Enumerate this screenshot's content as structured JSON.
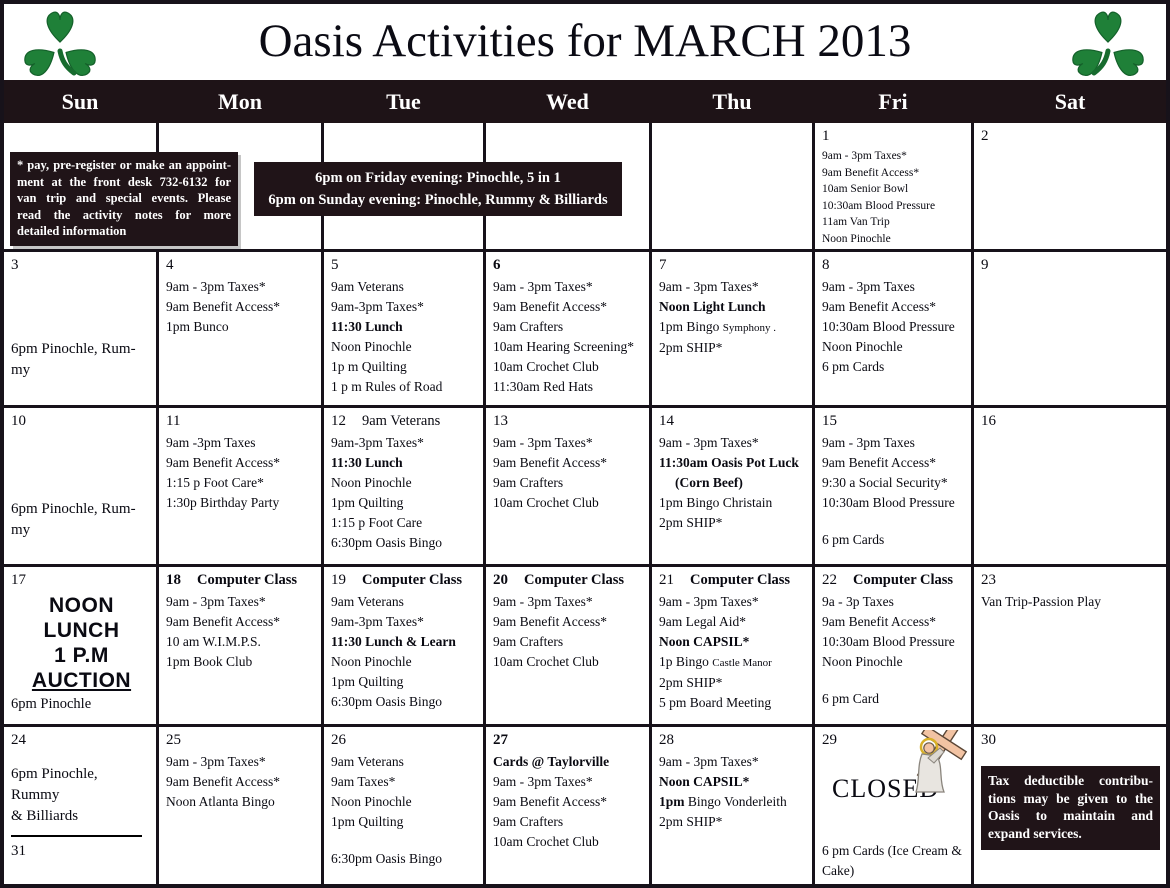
{
  "title": "Oasis Activities for MARCH 2013",
  "weekdays": [
    "Sun",
    "Mon",
    "Tue",
    "Wed",
    "Thu",
    "Fri",
    "Sat"
  ],
  "colors": {
    "band_bg": "#1e1317",
    "note_bg": "#201418",
    "shamrock_green": "#1f8038",
    "cross_tan": "#f2c3a3"
  },
  "icons": {
    "left": "shamrock-icon",
    "right": "shamrock-icon",
    "closed_cell": "jesus-carrying-cross-icon"
  },
  "notes": {
    "register_lines": [
      "* pay, pre-register or make an appoint-",
      "ment at the front desk 732-6132 for",
      "van trip and special events.  Please",
      "read the activity notes for more",
      "detailed information"
    ],
    "evening_lines": [
      "6pm on Friday evening: Pinochle, 5 in 1",
      "6pm on Sunday evening: Pinochle, Rummy & Billiards"
    ],
    "tax_lines": [
      "Tax deductible contribu-",
      "tions may be given to the",
      "Oasis to maintain and",
      "expand services."
    ]
  },
  "calendar": {
    "weeks": [
      [
        null,
        null,
        null,
        null,
        null,
        {
          "day": "1",
          "small": true,
          "lines": [
            {
              "t": "9am - 3pm Taxes*"
            },
            {
              "t": "9am Benefit Access*"
            },
            {
              "t": "10am Senior Bowl"
            },
            {
              "t": "10:30am Blood Pressure"
            },
            {
              "t": "11am Van Trip"
            },
            {
              "t": "Noon Pinochle"
            }
          ]
        },
        {
          "day": "2"
        }
      ],
      [
        {
          "day": "3",
          "large": true,
          "lines": [
            {
              "sp": 62
            },
            {
              "t": "6pm Pinochle, Rum-"
            },
            {
              "t": "my"
            }
          ]
        },
        {
          "day": "4",
          "lines": [
            {
              "t": "9am - 3pm Taxes*"
            },
            {
              "t": "9am Benefit Access*"
            },
            {
              "t": "1pm Bunco"
            }
          ]
        },
        {
          "day": "5",
          "lines": [
            {
              "t": "9am Veterans"
            },
            {
              "t": "9am-3pm Taxes*"
            },
            {
              "t": "11:30 Lunch",
              "b": true
            },
            {
              "t": "Noon Pinochle"
            },
            {
              "t": "1p m Quilting"
            },
            {
              "t": "1 p m Rules of Road"
            }
          ]
        },
        {
          "day": "6",
          "day_bold": true,
          "lines": [
            {
              "t": "9am - 3pm Taxes*"
            },
            {
              "t": "9am Benefit Access*"
            },
            {
              "t": "9am Crafters"
            },
            {
              "t": "10am Hearing Screening*"
            },
            {
              "t": "10am Crochet Club"
            },
            {
              "t": "11:30am Red Hats"
            }
          ]
        },
        {
          "day": "7",
          "lines": [
            {
              "t": "9am - 3pm Taxes*"
            },
            {
              "t": "Noon Light Lunch",
              "b": true
            },
            {
              "parts": [
                {
                  "t": "1pm Bingo "
                },
                {
                  "t": "Symphony .",
                  "small": true
                }
              ]
            },
            {
              "t": "2pm SHIP*"
            }
          ]
        },
        {
          "day": "8",
          "lines": [
            {
              "t": "9am - 3pm Taxes"
            },
            {
              "t": "9am Benefit Access*"
            },
            {
              "t": "10:30am Blood Pressure"
            },
            {
              "t": "Noon Pinochle"
            },
            {
              "t": "6 pm  Cards"
            }
          ]
        },
        {
          "day": "9"
        }
      ],
      [
        {
          "day": "10",
          "large": true,
          "lines": [
            {
              "sp": 66
            },
            {
              "t": "6pm Pinochle, Rum-"
            },
            {
              "t": "my"
            }
          ]
        },
        {
          "day": "11",
          "lines": [
            {
              "t": "9am -3pm Taxes"
            },
            {
              "t": "9am Benefit Access*"
            },
            {
              "t": "1:15 p Foot Care*"
            },
            {
              "t": "1:30p Birthday Party"
            }
          ]
        },
        {
          "day": "12",
          "header": "9am Veterans",
          "header_bold": false,
          "lines": [
            {
              "t": "9am-3pm Taxes*"
            },
            {
              "t": "11:30 Lunch",
              "b": true
            },
            {
              "t": "Noon Pinochle"
            },
            {
              "t": "1pm Quilting"
            },
            {
              "t": "1:15 p Foot Care"
            },
            {
              "t": "6:30pm Oasis Bingo"
            }
          ]
        },
        {
          "day": "13",
          "lines": [
            {
              "t": "9am - 3pm Taxes*"
            },
            {
              "t": "9am Benefit Access*"
            },
            {
              "t": "9am Crafters"
            },
            {
              "t": "10am Crochet Club"
            }
          ]
        },
        {
          "day": "14",
          "lines": [
            {
              "t": "9am - 3pm Taxes*"
            },
            {
              "t": "11:30am Oasis Pot Luck",
              "b": true
            },
            {
              "t": "(Corn Beef)",
              "b": true,
              "ind": true
            },
            {
              "t": "1pm Bingo Christain"
            },
            {
              "t": "2pm SHIP*"
            }
          ]
        },
        {
          "day": "15",
          "lines": [
            {
              "t": "9am - 3pm Taxes"
            },
            {
              "t": "9am Benefit Access*"
            },
            {
              "t": "9:30 a Social Security*"
            },
            {
              "t": "10:30am Blood Pressure"
            },
            {
              "sp": 17
            },
            {
              "t": "6 pm Cards"
            }
          ]
        },
        {
          "day": "16"
        }
      ],
      [
        {
          "day": "17",
          "type": "noon-auction",
          "big": [
            "NOON",
            "LUNCH",
            "1 P.M",
            "AUCTION"
          ],
          "bottom": "6pm Pinochle"
        },
        {
          "day": "18",
          "day_bold": true,
          "header": "Computer Class",
          "lines": [
            {
              "t": "9am - 3pm Taxes*"
            },
            {
              "t": "9am Benefit Access*"
            },
            {
              "t": "10 am W.I.M.P.S."
            },
            {
              "t": "1pm Book Club"
            }
          ]
        },
        {
          "day": "19",
          "header": "Computer Class",
          "lines": [
            {
              "t": "9am Veterans"
            },
            {
              "t": "9am-3pm Taxes*"
            },
            {
              "t": "11:30 Lunch & Learn",
              "b": true
            },
            {
              "t": "Noon Pinochle"
            },
            {
              "t": "1pm Quilting"
            },
            {
              "t": "6:30pm Oasis Bingo"
            }
          ]
        },
        {
          "day": "20",
          "day_bold": true,
          "header": "Computer Class",
          "lines": [
            {
              "t": "9am - 3pm Taxes*"
            },
            {
              "t": "9am Benefit Access*"
            },
            {
              "t": "9am Crafters"
            },
            {
              "t": "10am Crochet Club"
            }
          ]
        },
        {
          "day": "21",
          "header": "Computer Class",
          "lines": [
            {
              "t": "9am - 3pm Taxes*"
            },
            {
              "t": "9am Legal Aid*"
            },
            {
              "t": "Noon CAPSIL*",
              "b": true
            },
            {
              "parts": [
                {
                  "t": "1p Bingo "
                },
                {
                  "t": " Castle Manor",
                  "small": true
                }
              ]
            },
            {
              "t": "2pm SHIP*"
            },
            {
              "t": "5 pm Board Meeting"
            }
          ]
        },
        {
          "day": "22",
          "header": "Computer Class",
          "lines": [
            {
              "t": "9a - 3p Taxes"
            },
            {
              "t": "9am Benefit Access*"
            },
            {
              "t": "10:30am Blood Pressure"
            },
            {
              "t": "Noon Pinochle"
            },
            {
              "sp": 17
            },
            {
              "t": "6 pm Card"
            }
          ]
        },
        {
          "day": "23",
          "lines": [
            {
              "t": "Van Trip-Passion Play"
            }
          ]
        }
      ],
      [
        {
          "day": "24",
          "type": "sun-divider",
          "large": true,
          "day2": "31",
          "lines": [
            {
              "sp": 12
            },
            {
              "t": "6pm Pinochle,"
            },
            {
              "t": "Rummy"
            },
            {
              "t": "& Billiards"
            }
          ]
        },
        {
          "day": "25",
          "lines": [
            {
              "t": "9am - 3pm Taxes*"
            },
            {
              "t": "9am Benefit Access*"
            },
            {
              "t": "Noon Atlanta Bingo"
            }
          ]
        },
        {
          "day": "26",
          "lines": [
            {
              "t": "9am Veterans"
            },
            {
              "t": "9am Taxes*"
            },
            {
              "t": "Noon Pinochle"
            },
            {
              "t": "1pm Quilting"
            },
            {
              "sp": 17
            },
            {
              "t": "6:30pm Oasis Bingo"
            }
          ]
        },
        {
          "day": "27",
          "day_bold": true,
          "lines": [
            {
              "t": "Cards @ Taylorville",
              "b": true
            },
            {
              "t": "9am - 3pm Taxes*"
            },
            {
              "t": "9am Benefit Access*"
            },
            {
              "t": "9am Crafters"
            },
            {
              "t": "10am Crochet Club"
            }
          ]
        },
        {
          "day": "28",
          "lines": [
            {
              "t": "9am - 3pm Taxes*"
            },
            {
              "t": "Noon CAPSIL*",
              "b": true
            },
            {
              "parts": [
                {
                  "t": "1pm",
                  "b": true
                },
                {
                  "t": " Bingo Vonderleith"
                }
              ]
            },
            {
              "t": "2pm SHIP*"
            }
          ]
        },
        {
          "day": "29",
          "type": "closed",
          "closed_label": "CLOSED",
          "bottom": "6 pm Cards (Ice Cream & Cake)"
        },
        {
          "day": "30",
          "type": "tax-note"
        }
      ]
    ]
  }
}
